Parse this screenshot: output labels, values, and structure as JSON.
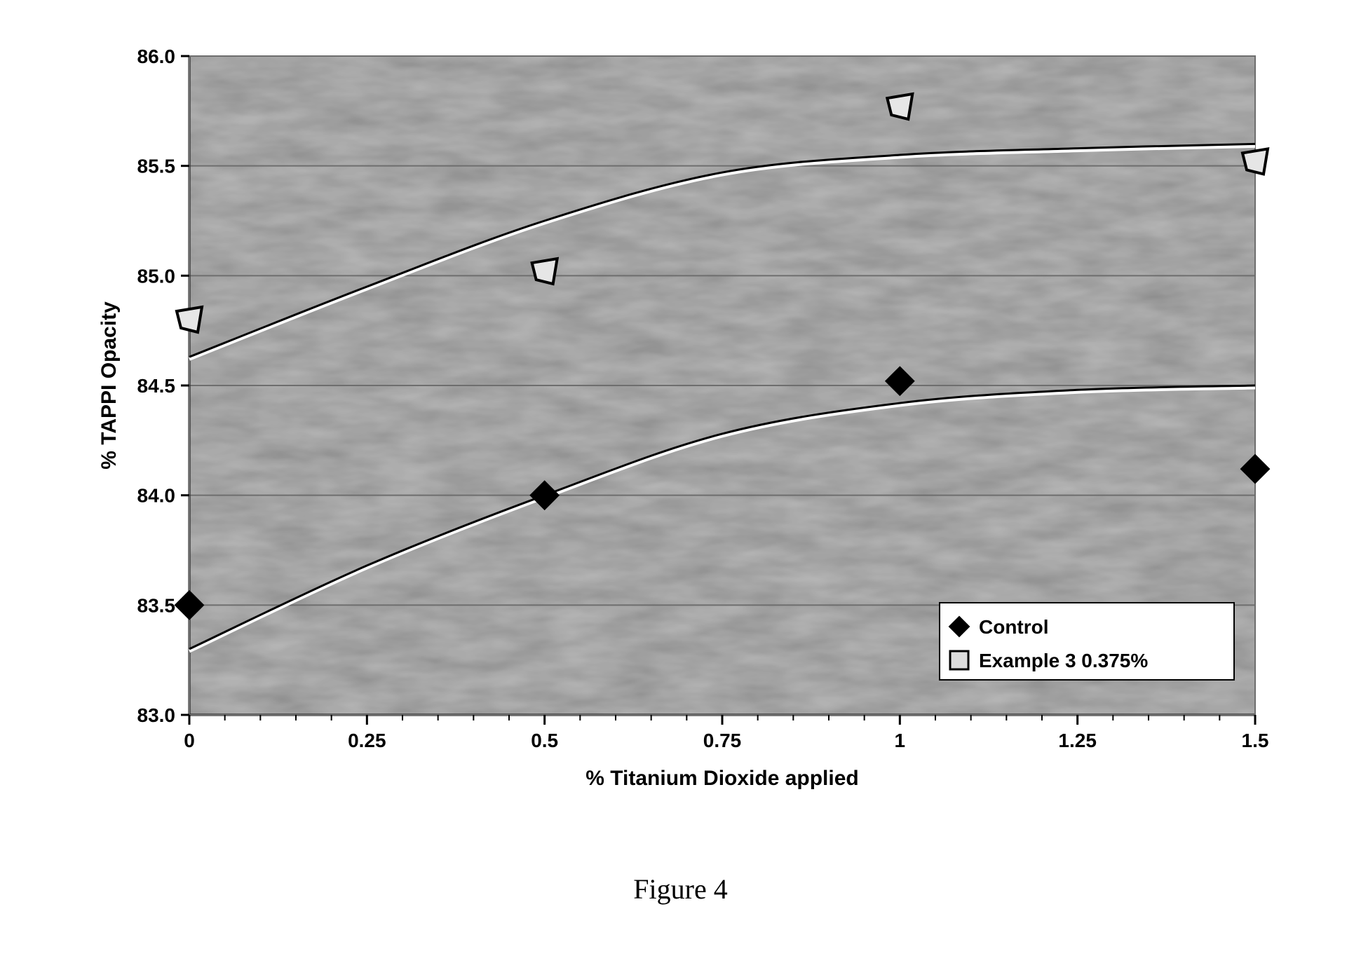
{
  "caption": "Figure 4",
  "chart": {
    "type": "scatter-with-trendlines",
    "background_color": "#b8b8b8",
    "plot_texture": "noisy-gray-photocopy",
    "grid_color": "#6e6e6e",
    "axis_color": "#000000",
    "xlabel": "% Titanium Dioxide applied",
    "ylabel": "% TAPPI Opacity",
    "label_fontsize": 30,
    "label_fontweight": "bold",
    "tick_fontsize": 28,
    "tick_fontweight": "bold",
    "xlim": [
      0,
      1.5
    ],
    "xtick_step": 0.25,
    "xticks": [
      0,
      0.25,
      0.5,
      0.75,
      1,
      1.25,
      1.5
    ],
    "x_minor_ticks_between": 4,
    "ylim": [
      83.0,
      86.0
    ],
    "ytick_step": 0.5,
    "yticks": [
      83.0,
      83.5,
      84.0,
      84.5,
      85.0,
      85.5,
      86.0
    ],
    "legend": {
      "position": "lower-right",
      "background": "#ffffff",
      "border_color": "#000000",
      "fontsize": 28,
      "fontweight": "bold",
      "items": [
        {
          "label": "Control",
          "marker": "diamond",
          "fill": "#000000",
          "stroke": "#000000"
        },
        {
          "label": "Example 3  0.375%",
          "marker": "square",
          "fill": "#dcdcdc",
          "stroke": "#000000"
        }
      ]
    },
    "series": [
      {
        "name": "Control",
        "marker": "diamond",
        "marker_size": 26,
        "marker_fill": "#000000",
        "marker_stroke": "#000000",
        "points": [
          {
            "x": 0.0,
            "y": 83.5
          },
          {
            "x": 0.5,
            "y": 84.0
          },
          {
            "x": 1.0,
            "y": 84.52
          },
          {
            "x": 1.5,
            "y": 84.12
          }
        ],
        "trend": {
          "stroke": "#000000",
          "stroke_width": 3,
          "highlight": "#ffffff",
          "curve": [
            {
              "x": 0.0,
              "y": 83.3
            },
            {
              "x": 0.25,
              "y": 83.68
            },
            {
              "x": 0.5,
              "y": 84.0
            },
            {
              "x": 0.75,
              "y": 84.28
            },
            {
              "x": 1.0,
              "y": 84.42
            },
            {
              "x": 1.25,
              "y": 84.48
            },
            {
              "x": 1.5,
              "y": 84.5
            }
          ]
        }
      },
      {
        "name": "Example 3  0.375%",
        "marker": "square",
        "marker_size": 30,
        "marker_fill": "#e6e6e6",
        "marker_stroke": "#000000",
        "marker_stroke_width": 4,
        "points": [
          {
            "x": 0.0,
            "y": 84.8
          },
          {
            "x": 0.5,
            "y": 85.02
          },
          {
            "x": 1.0,
            "y": 85.77
          },
          {
            "x": 1.5,
            "y": 85.52
          }
        ],
        "trend": {
          "stroke": "#000000",
          "stroke_width": 3,
          "highlight": "#ffffff",
          "curve": [
            {
              "x": 0.0,
              "y": 84.63
            },
            {
              "x": 0.25,
              "y": 84.95
            },
            {
              "x": 0.5,
              "y": 85.25
            },
            {
              "x": 0.75,
              "y": 85.47
            },
            {
              "x": 1.0,
              "y": 85.55
            },
            {
              "x": 1.25,
              "y": 85.58
            },
            {
              "x": 1.5,
              "y": 85.6
            }
          ]
        }
      }
    ]
  }
}
